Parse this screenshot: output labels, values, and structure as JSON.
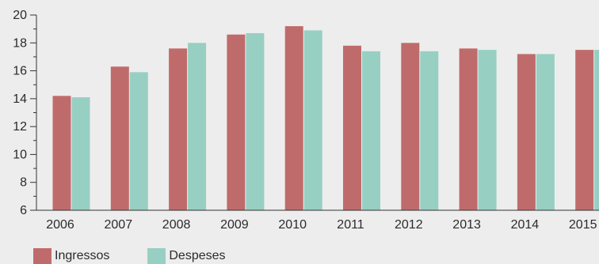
{
  "chart_data": {
    "type": "bar",
    "categories": [
      "2006",
      "2007",
      "2008",
      "2009",
      "2010",
      "2011",
      "2012",
      "2013",
      "2014",
      "2015"
    ],
    "series": [
      {
        "name": "Ingressos",
        "color": "#c06b6b",
        "values": [
          14.2,
          16.3,
          17.6,
          18.6,
          19.2,
          17.8,
          18.0,
          17.6,
          17.2,
          17.5
        ]
      },
      {
        "name": "Despeses",
        "color": "#98cfc3",
        "values": [
          14.1,
          15.9,
          18.0,
          18.7,
          18.9,
          17.4,
          17.4,
          17.5,
          17.2,
          17.5
        ]
      }
    ],
    "yticks": [
      6,
      8,
      10,
      12,
      14,
      16,
      18,
      20
    ],
    "ylim": [
      6,
      20
    ],
    "minor_tick_step": 1,
    "grid": false,
    "legend_position": "bottom-left"
  }
}
